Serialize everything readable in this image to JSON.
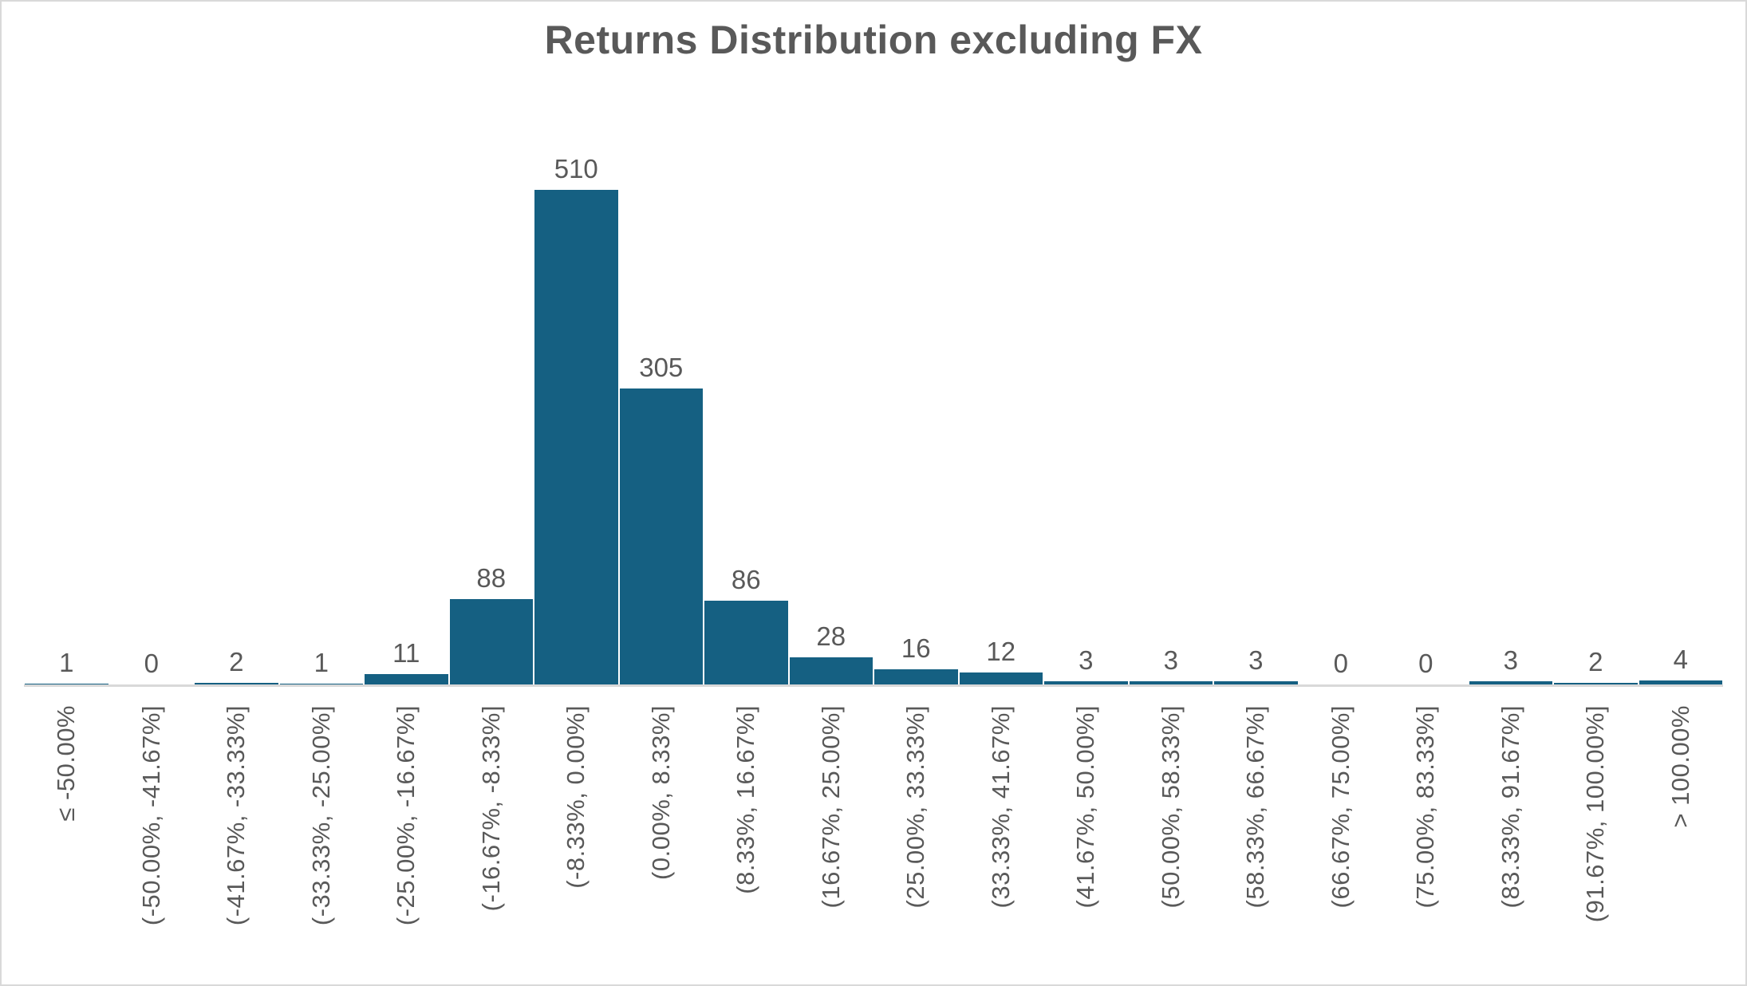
{
  "title": "Returns Distribution excluding FX",
  "colors": {
    "bar": "#156082",
    "text": "#595959",
    "axis_line": "#d9d9d9",
    "frame_border": "#d9d9d9",
    "background": "#ffffff"
  },
  "chart_data": {
    "type": "bar",
    "title": "Returns Distribution excluding FX",
    "categories": [
      "≤ -50.00%",
      "(-50.00%, -41.67%]",
      "(-41.67%, -33.33%]",
      "(-33.33%, -25.00%]",
      "(-25.00%, -16.67%]",
      "(-16.67%, -8.33%]",
      "(-8.33%, 0.00%]",
      "(0.00%, 8.33%]",
      "(8.33%, 16.67%]",
      "(16.67%, 25.00%]",
      "(25.00%, 33.33%]",
      "(33.33%, 41.67%]",
      "(41.67%, 50.00%]",
      "(50.00%, 58.33%]",
      "(58.33%, 66.67%]",
      "(66.67%, 75.00%]",
      "(75.00%, 83.33%]",
      "(83.33%, 91.67%]",
      "(91.67%, 100.00%]",
      "> 100.00%"
    ],
    "values": [
      1,
      0,
      2,
      1,
      11,
      88,
      510,
      305,
      86,
      28,
      16,
      12,
      3,
      3,
      3,
      0,
      0,
      3,
      2,
      4
    ],
    "xlabel": "",
    "ylabel": "",
    "ylim": [
      0,
      704
    ],
    "grid": false,
    "legend": false,
    "data_labels": true,
    "x_tick_rotation": 90
  }
}
